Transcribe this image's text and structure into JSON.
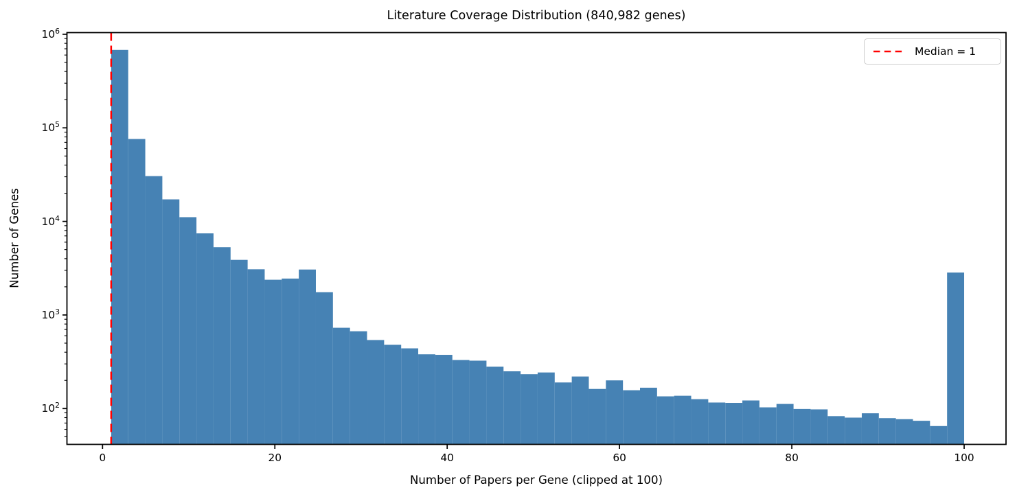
{
  "figure": {
    "title": "Literature Coverage Distribution (840,982 genes)",
    "xlabel": "Number of Papers per Gene (clipped at 100)",
    "ylabel": "Number of Genes",
    "legend": {
      "label": "Median = 1"
    },
    "colors": {
      "bar": "#4682B4",
      "median_line": "#FF0000",
      "axis": "#000000",
      "legend_border": "#CCCCCC"
    }
  },
  "chart_data": {
    "type": "bar",
    "subtype": "histogram",
    "title": "Literature Coverage Distribution (840,982 genes)",
    "xlabel": "Number of Papers per Gene (clipped at 100)",
    "ylabel": "Number of Genes",
    "yscale": "log",
    "grid": false,
    "legend_position": "upper right",
    "bar_color": "#4682B4",
    "median_line": {
      "x": 1,
      "color": "#FF0000",
      "style": "dashed",
      "label": "Median = 1"
    },
    "xlim": [
      -4.13,
      104.86
    ],
    "ylim": [
      41.4,
      1042000
    ],
    "x_ticks": [
      0,
      20,
      40,
      60,
      80,
      100
    ],
    "y_tick_exponents": [
      2,
      3,
      4,
      5,
      6
    ],
    "bin_start": 1,
    "bin_width": 1.98,
    "counts": [
      680000,
      76000,
      30500,
      17200,
      11100,
      7450,
      5300,
      3880,
      3080,
      2380,
      2450,
      3060,
      1750,
      730,
      670,
      540,
      480,
      440,
      380,
      375,
      330,
      325,
      280,
      250,
      233,
      243,
      190,
      220,
      162,
      200,
      157,
      167,
      135,
      137,
      126,
      116,
      115,
      122,
      103,
      112,
      99,
      98,
      83,
      80,
      89,
      79,
      77,
      74,
      65,
      2840
    ]
  }
}
